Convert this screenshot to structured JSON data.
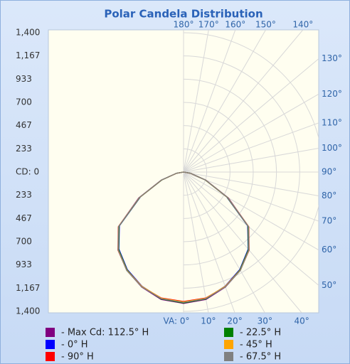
{
  "chart_data": {
    "type": "polar",
    "title": "Polar Candela Distribution",
    "rlim": [
      0,
      1400
    ],
    "rticks": [
      {
        "value": 0,
        "label": "CD: 0"
      },
      233,
      467,
      700,
      933,
      {
        "value": 1167,
        "label": "1,167"
      },
      {
        "value": 1400,
        "label": "1,400"
      }
    ],
    "angle_ticks": [
      {
        "value": 0,
        "label": "VA: 0°"
      },
      {
        "value": 10,
        "label": "10°"
      },
      {
        "value": 20,
        "label": "20°"
      },
      {
        "value": 30,
        "label": "30°"
      },
      {
        "value": 40,
        "label": "40°"
      },
      {
        "value": 50,
        "label": "50°"
      },
      {
        "value": 60,
        "label": "60°"
      },
      {
        "value": 70,
        "label": "70°"
      },
      {
        "value": 80,
        "label": "80°"
      },
      {
        "value": 90,
        "label": "90°"
      },
      {
        "value": 100,
        "label": "100°"
      },
      {
        "value": 110,
        "label": "110°"
      },
      {
        "value": 120,
        "label": "120°"
      },
      {
        "value": 130,
        "label": "130°"
      },
      {
        "value": 140,
        "label": "140°"
      },
      {
        "value": 150,
        "label": "150°"
      },
      {
        "value": 160,
        "label": "160°"
      },
      {
        "value": 170,
        "label": "170°"
      },
      {
        "value": 180,
        "label": "180°"
      }
    ],
    "x": [
      0,
      10,
      20,
      30,
      40,
      50,
      60,
      70,
      80,
      90
    ],
    "series": [
      {
        "name": "- Max Cd: 112.5° H",
        "color": "#800080",
        "values": [
          1320,
          1300,
          1230,
          1140,
          1020,
          850,
          520,
          240,
          75,
          0
        ]
      },
      {
        "name": "- 0° H",
        "color": "#0000ff",
        "values": [
          1310,
          1290,
          1220,
          1130,
          1010,
          840,
          500,
          230,
          70,
          0
        ]
      },
      {
        "name": "- 90° H",
        "color": "#ff0000",
        "values": [
          1300,
          1285,
          1225,
          1140,
          1025,
          855,
          515,
          235,
          72,
          0
        ]
      },
      {
        "name": "- 22.5° H",
        "color": "#008000",
        "values": [
          1315,
          1295,
          1225,
          1135,
          1015,
          845,
          505,
          232,
          71,
          0
        ]
      },
      {
        "name": "- 45° H",
        "color": "#ffa500",
        "values": [
          1305,
          1288,
          1222,
          1138,
          1020,
          850,
          510,
          236,
          73,
          0
        ]
      },
      {
        "name": "- 67.5° H",
        "color": "#808080",
        "values": [
          1310,
          1292,
          1228,
          1142,
          1022,
          852,
          512,
          238,
          74,
          0
        ]
      }
    ]
  }
}
